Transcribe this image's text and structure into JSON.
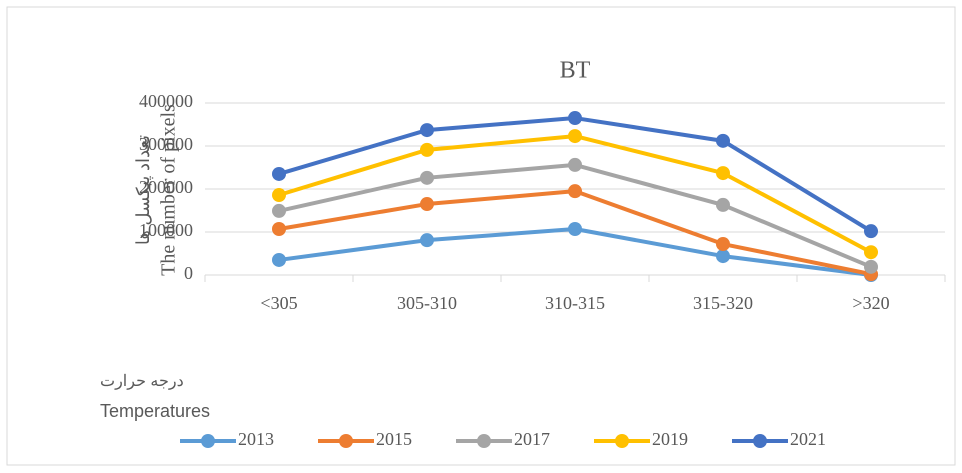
{
  "chart_data": {
    "type": "line",
    "title": "BT",
    "y_label": [
      "تعداد پیکسل ها",
      "The number of pixels"
    ],
    "x_label": [
      "درجه حرارت",
      "Temperatures"
    ],
    "categories": [
      "<305",
      "305-310",
      "310-315",
      "315-320",
      ">320"
    ],
    "series": [
      {
        "name": "2013",
        "color": "#5b9bd5",
        "values": [
          35000,
          81000,
          107000,
          44000,
          0
        ]
      },
      {
        "name": "2015",
        "color": "#ed7d31",
        "values": [
          107000,
          165000,
          195000,
          72000,
          2000
        ]
      },
      {
        "name": "2017",
        "color": "#a5a5a5",
        "values": [
          149000,
          226000,
          256000,
          163000,
          19000
        ]
      },
      {
        "name": "2019",
        "color": "#ffc000",
        "values": [
          186000,
          291000,
          323000,
          237000,
          53000
        ]
      },
      {
        "name": "2021",
        "color": "#4472c4",
        "values": [
          235000,
          337000,
          365000,
          312000,
          102000
        ]
      }
    ],
    "ylim": [
      0,
      400000
    ],
    "yticks": [
      0,
      100000,
      200000,
      300000,
      400000
    ],
    "grid": true,
    "legend": "bottom"
  }
}
